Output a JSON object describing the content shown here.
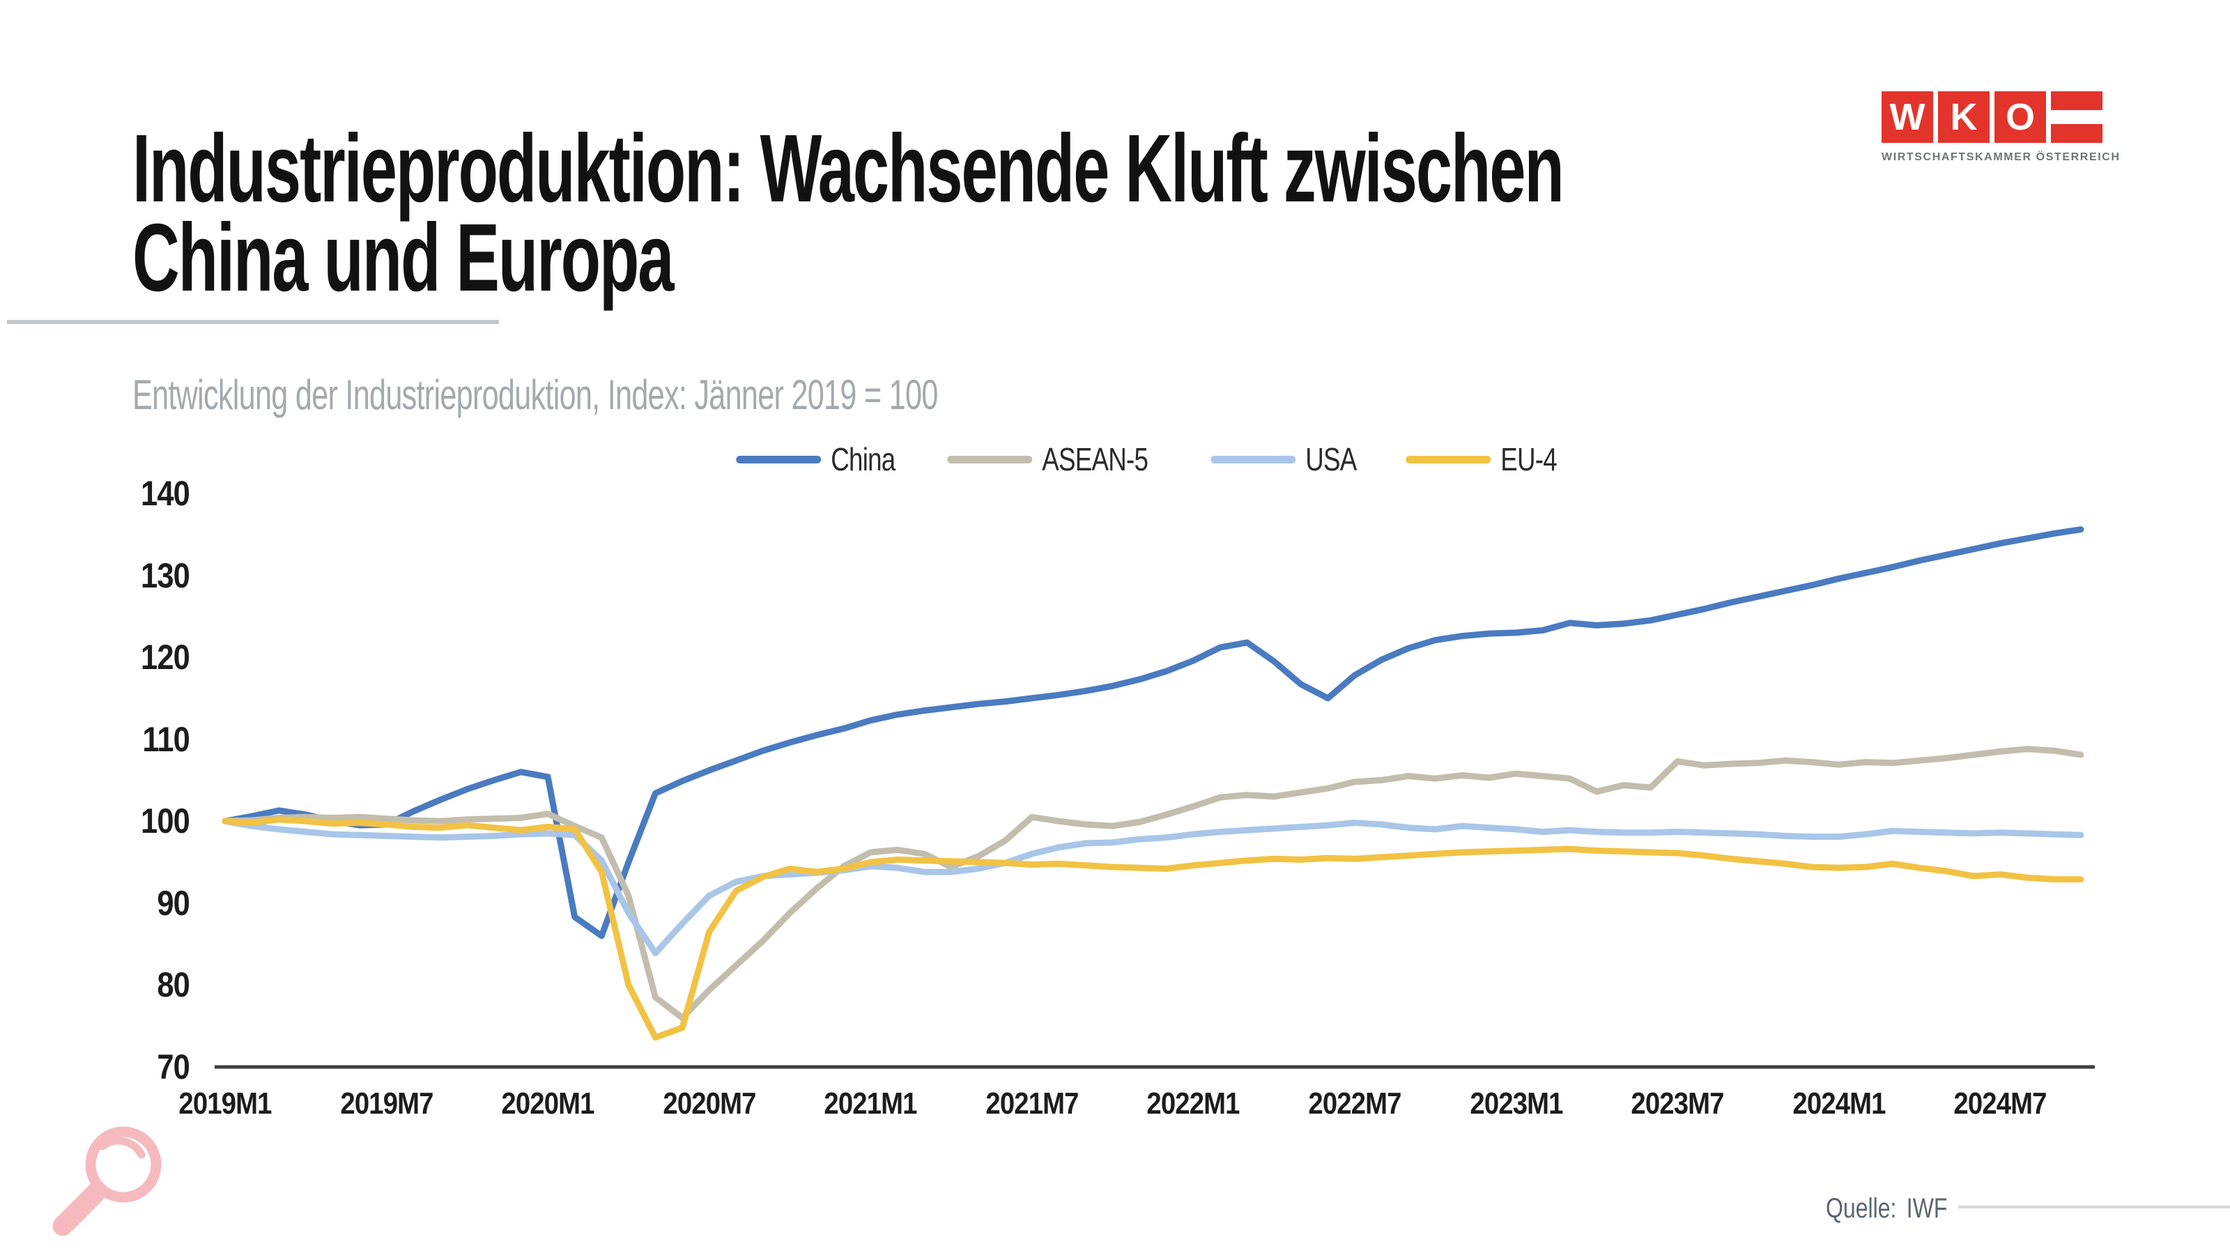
{
  "header": {
    "title_line1": "Industrieproduktion: Wachsende Kluft zwischen",
    "title_line2": "China und Europa",
    "subtitle": "Entwicklung der Industrieproduktion, Index: Jänner 2019 = 100"
  },
  "logo": {
    "letters": [
      "W",
      "K",
      "O"
    ],
    "caption": "WIRTSCHAFTSKAMMER ÖSTERREICH",
    "brand_red": "#e3342c"
  },
  "footer": {
    "source_label": "Quelle:",
    "source_value": "IWF"
  },
  "icons": {
    "magnifier_color": "#f6b9be"
  },
  "colors": {
    "title_text": "#121212",
    "subtitle_text": "#a4a9ae",
    "axis_line": "#3f3f3f",
    "tick_text": "#1c1c1c",
    "source_text": "#5b6570"
  },
  "chart_data": {
    "type": "line",
    "title": "Entwicklung der Industrieproduktion, Index: Jänner 2019 = 100",
    "x_start": "2019M1",
    "x_end": "2024M10",
    "x_frequency": "monthly",
    "n_points": 70,
    "x_tick_labels": [
      "2019M1",
      "2019M7",
      "2020M1",
      "2020M7",
      "2021M1",
      "2021M7",
      "2022M1",
      "2022M7",
      "2023M1",
      "2023M7",
      "2024M1",
      "2024M7"
    ],
    "x_tick_interval_months": 6,
    "ylim": [
      70,
      140
    ],
    "yticks": [
      140,
      130,
      120,
      110,
      100,
      90,
      80,
      70
    ],
    "grid": false,
    "legend_position": "top-center",
    "series": [
      {
        "name": "China",
        "color": "#4a7bc0",
        "values": [
          100,
          100.6,
          101.3,
          100.8,
          100,
          99.5,
          99.6,
          101.2,
          102.6,
          103.9,
          105,
          106,
          105.4,
          88.3,
          86,
          95,
          103.4,
          104.9,
          106.2,
          107.4,
          108.6,
          109.6,
          110.5,
          111.3,
          112.3,
          113,
          113.5,
          113.9,
          114.3,
          114.6,
          115,
          115.4,
          115.9,
          116.5,
          117.3,
          118.3,
          119.6,
          121.2,
          121.8,
          119.5,
          116.7,
          115,
          117.8,
          119.7,
          121.1,
          122.1,
          122.6,
          122.9,
          123,
          123.3,
          124.2,
          123.9,
          124.1,
          124.5,
          125.2,
          125.9,
          126.7,
          127.4,
          128.1,
          128.8,
          129.6,
          130.3,
          131,
          131.8,
          132.5,
          133.2,
          133.9,
          134.5,
          135.1,
          135.6
        ]
      },
      {
        "name": "ASEAN-5",
        "color": "#c3bdae",
        "values": [
          100,
          100.1,
          100.4,
          100.5,
          100.4,
          100.5,
          100.3,
          100.1,
          100,
          100.2,
          100.3,
          100.4,
          100.9,
          99.4,
          98,
          90.9,
          78.5,
          76,
          79.4,
          82.4,
          85.4,
          88.8,
          91.8,
          94.5,
          96.2,
          96.5,
          96,
          94.4,
          95.7,
          97.6,
          100.5,
          100,
          99.6,
          99.4,
          99.9,
          100.8,
          101.8,
          102.9,
          103.2,
          103,
          103.5,
          104,
          104.8,
          105,
          105.5,
          105.2,
          105.6,
          105.3,
          105.8,
          105.5,
          105.2,
          103.6,
          104.4,
          104.1,
          107.3,
          106.8,
          107,
          107.1,
          107.4,
          107.2,
          106.9,
          107.2,
          107.1,
          107.4,
          107.7,
          108.1,
          108.5,
          108.8,
          108.6,
          108.1
        ]
      },
      {
        "name": "USA",
        "color": "#a9c6e8",
        "values": [
          100,
          99.4,
          99,
          98.7,
          98.4,
          98.3,
          98.2,
          98.1,
          98,
          98.1,
          98.2,
          98.4,
          98.5,
          98.3,
          95.2,
          88.8,
          83.9,
          87.5,
          90.9,
          92.6,
          93.3,
          93.5,
          93.7,
          94,
          94.5,
          94.3,
          93.8,
          93.8,
          94.2,
          94.9,
          96,
          96.8,
          97.3,
          97.4,
          97.8,
          98,
          98.4,
          98.7,
          98.9,
          99.1,
          99.3,
          99.5,
          99.8,
          99.6,
          99.2,
          99,
          99.4,
          99.2,
          99,
          98.7,
          98.9,
          98.7,
          98.6,
          98.6,
          98.7,
          98.6,
          98.5,
          98.4,
          98.2,
          98.1,
          98.1,
          98.4,
          98.8,
          98.7,
          98.6,
          98.5,
          98.6,
          98.5,
          98.4,
          98.3
        ]
      },
      {
        "name": "EU-4",
        "color": "#f2c244",
        "values": [
          100,
          99.8,
          100.2,
          100,
          99.7,
          99.8,
          99.6,
          99.3,
          99.2,
          99.5,
          99.2,
          98.9,
          99.3,
          99,
          93.8,
          80,
          73.6,
          74.8,
          86.5,
          91.5,
          93.2,
          94.2,
          93.8,
          94.2,
          95,
          95.3,
          95.2,
          95.1,
          95,
          94.9,
          94.7,
          94.8,
          94.6,
          94.4,
          94.3,
          94.2,
          94.6,
          94.9,
          95.2,
          95.4,
          95.3,
          95.5,
          95.4,
          95.6,
          95.8,
          96,
          96.2,
          96.3,
          96.4,
          96.5,
          96.6,
          96.4,
          96.3,
          96.2,
          96.1,
          95.8,
          95.4,
          95.1,
          94.8,
          94.4,
          94.3,
          94.4,
          94.8,
          94.3,
          93.9,
          93.3,
          93.5,
          93.1,
          92.9,
          92.9
        ]
      }
    ]
  }
}
